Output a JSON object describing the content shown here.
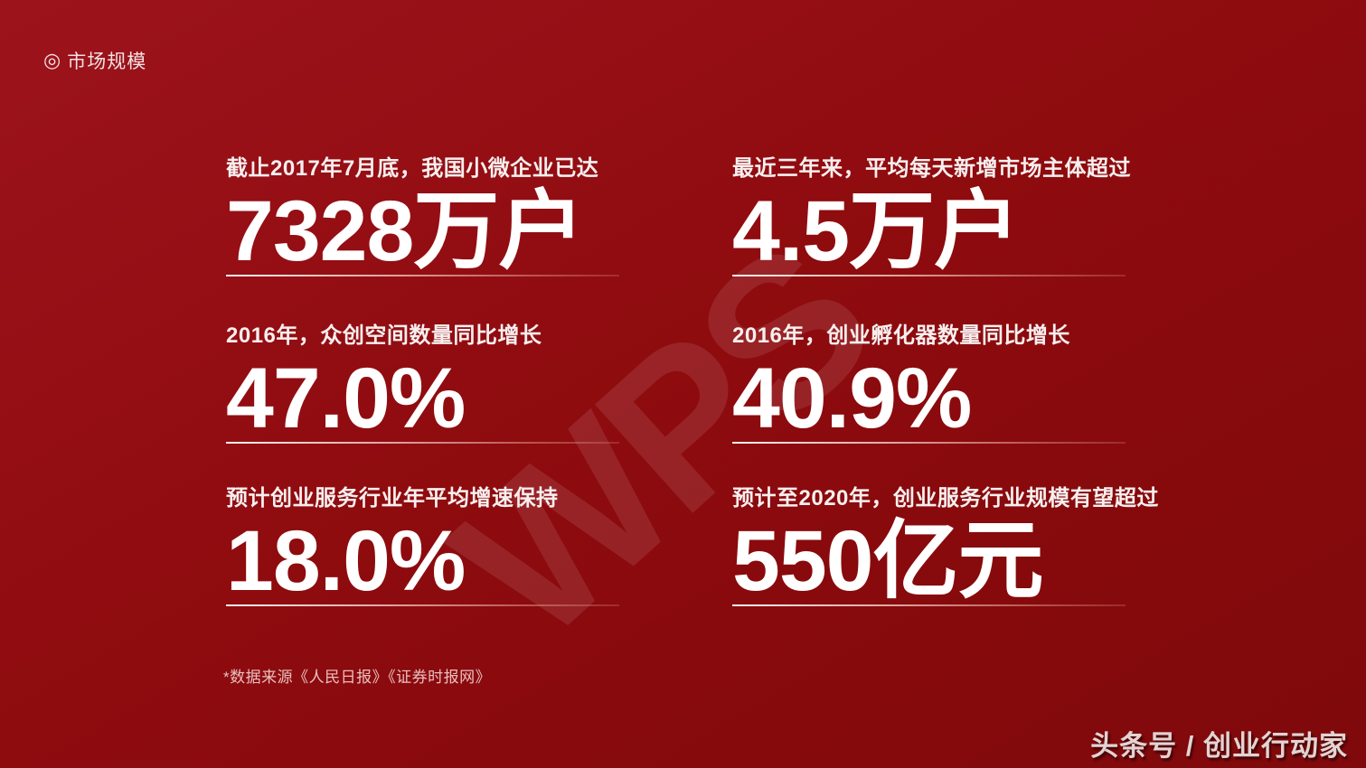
{
  "header": {
    "bullet": "◎",
    "title": "市场规模"
  },
  "stats": [
    {
      "label": "截止2017年7月底，我国小微企业已达",
      "value": "7328万户"
    },
    {
      "label": "最近三年来，平均每天新增市场主体超过",
      "value": "4.5万户"
    },
    {
      "label": "2016年，众创空间数量同比增长",
      "value": "47.0%"
    },
    {
      "label": "2016年，创业孵化器数量同比增长",
      "value": "40.9%"
    },
    {
      "label": "预计创业服务行业年平均增速保持",
      "value": "18.0%"
    },
    {
      "label": "预计至2020年，创业服务行业规模有望超过",
      "value": "550亿元"
    }
  ],
  "footnote": "*数据来源《人民日报》《证券时报网》",
  "watermarks": {
    "wps": "WPS",
    "toutiao": "头条号 / 创业行动家"
  },
  "colors": {
    "background": "#8e0b0e",
    "background_light": "#9d131c",
    "background_dark": "#7f090b",
    "text": "#ffffff",
    "underline_start": "#ffffff",
    "underline_end": "#d28278"
  }
}
